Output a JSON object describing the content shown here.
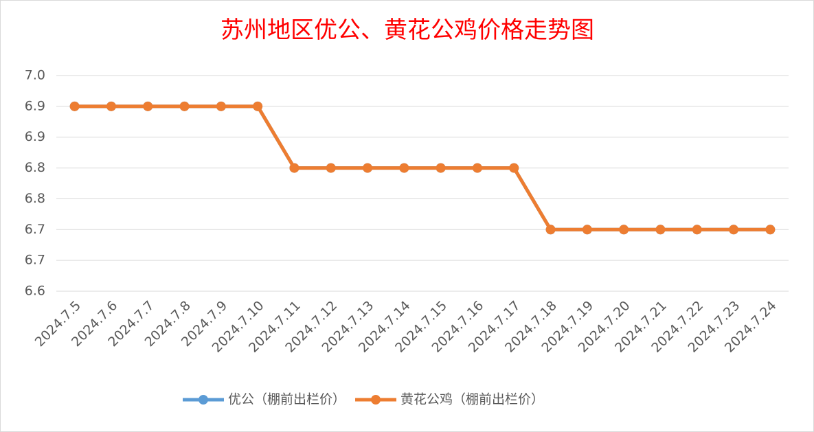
{
  "chart_data": {
    "type": "line",
    "title": "苏州地区优公、黄花公鸡价格走势图",
    "categories": [
      "2024.7.5",
      "2024.7.6",
      "2024.7.7",
      "2024.7.8",
      "2024.7.9",
      "2024.7.10",
      "2024.7.11",
      "2024.7.12",
      "2024.7.13",
      "2024.7.14",
      "2024.7.15",
      "2024.7.16",
      "2024.7.17",
      "2024.7.18",
      "2024.7.19",
      "2024.7.20",
      "2024.7.21",
      "2024.7.22",
      "2024.7.23",
      "2024.7.24"
    ],
    "series": [
      {
        "name": "优公（棚前出栏价）",
        "color": "#5b9bd5",
        "values": [
          6.9,
          6.9,
          6.9,
          6.9,
          6.9,
          6.9,
          6.8,
          6.8,
          6.8,
          6.8,
          6.8,
          6.8,
          6.8,
          6.7,
          6.7,
          6.7,
          6.7,
          6.7,
          6.7,
          6.7
        ]
      },
      {
        "name": "黄花公鸡（棚前出栏价）",
        "color": "#ed7d31",
        "values": [
          6.9,
          6.9,
          6.9,
          6.9,
          6.9,
          6.9,
          6.8,
          6.8,
          6.8,
          6.8,
          6.8,
          6.8,
          6.8,
          6.7,
          6.7,
          6.7,
          6.7,
          6.7,
          6.7,
          6.7
        ]
      }
    ],
    "ylim": [
      6.6,
      6.95
    ],
    "yticks": [
      6.6,
      {
        "value": 6.65,
        "label": "6.7"
      },
      6.7,
      {
        "value": 6.75,
        "label": "6.8"
      },
      6.8,
      {
        "value": 6.85,
        "label": "6.9"
      },
      6.9,
      {
        "value": 6.95,
        "label": "7.0"
      }
    ],
    "grid": true,
    "legend": "bottom"
  }
}
